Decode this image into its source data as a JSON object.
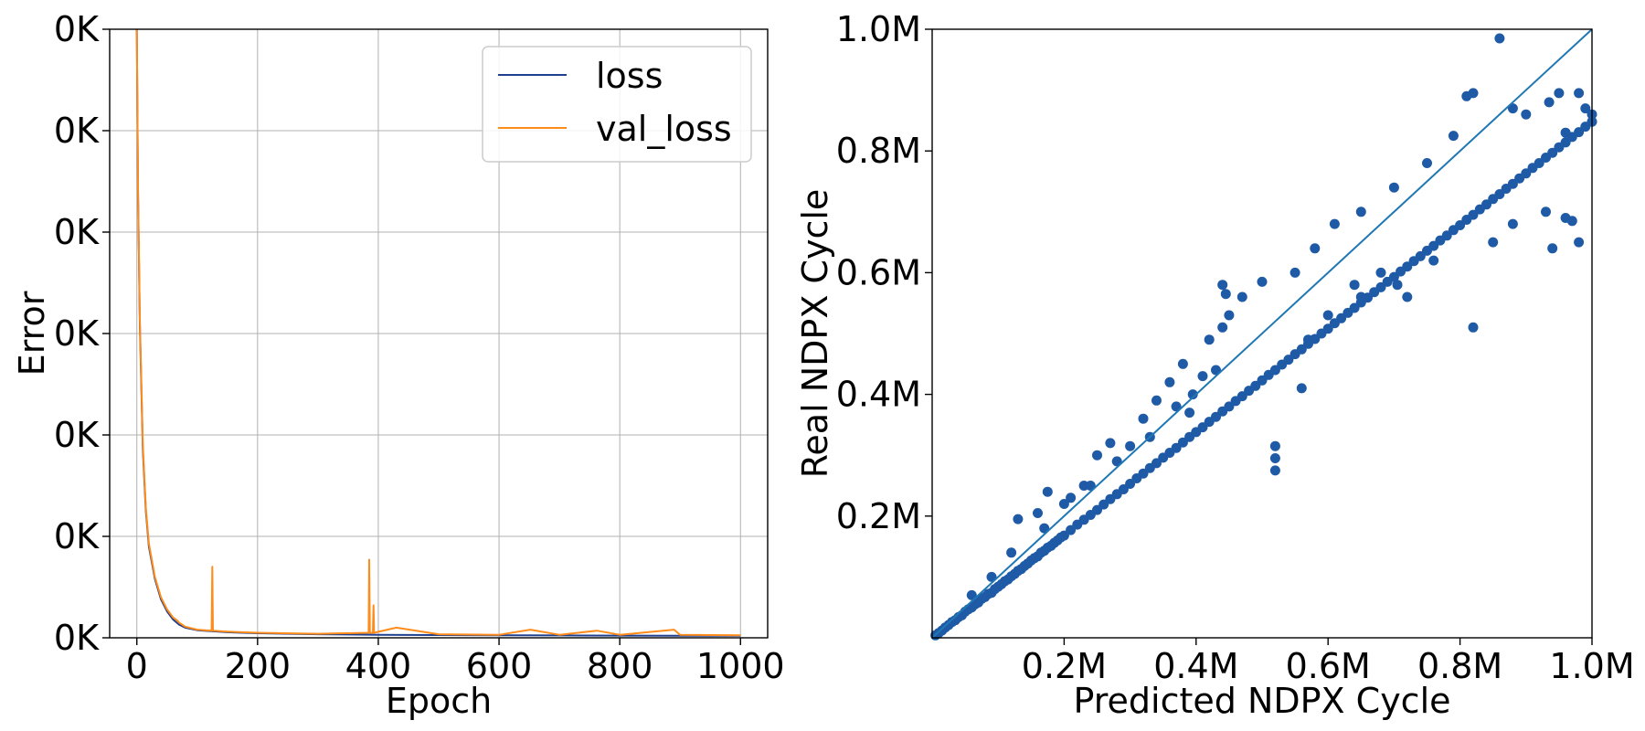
{
  "chart_data": [
    {
      "type": "line",
      "xlabel": "Epoch",
      "ylabel": "Error",
      "xlim": [
        -45,
        1045
      ],
      "ylim": [
        0,
        6
      ],
      "x_ticks": [
        0,
        200,
        400,
        600,
        800,
        1000
      ],
      "x_tick_labels": [
        "0",
        "200",
        "400",
        "600",
        "800",
        "1000"
      ],
      "y_ticks": [
        0,
        1,
        2,
        3,
        4,
        5,
        6
      ],
      "y_tick_labels": [
        "0K",
        "0K",
        "0K",
        "0K",
        "0K",
        "0K",
        "0K"
      ],
      "grid": true,
      "legend_position": "top-right",
      "series": [
        {
          "name": "loss",
          "color": "#1f3f8f",
          "shape": "exponential decay from 6.0 at epoch 0 to about 0.02 by epoch 1000",
          "x": [
            0,
            2,
            5,
            10,
            15,
            20,
            30,
            40,
            50,
            60,
            70,
            80,
            100,
            150,
            200,
            300,
            400,
            500,
            600,
            700,
            800,
            900,
            1000
          ],
          "y": [
            6.0,
            4.4,
            3.1,
            1.85,
            1.25,
            0.9,
            0.58,
            0.38,
            0.26,
            0.18,
            0.13,
            0.1,
            0.075,
            0.055,
            0.045,
            0.035,
            0.03,
            0.027,
            0.025,
            0.023,
            0.022,
            0.021,
            0.02
          ]
        },
        {
          "name": "val_loss",
          "color": "#ff8c1a",
          "shape": "follows loss with small noise; spikes near epochs 67, 125, 385, 392, 430, 652, 762, 890",
          "x": [
            0,
            2,
            5,
            10,
            15,
            20,
            30,
            40,
            50,
            60,
            67,
            70,
            80,
            100,
            124,
            125,
            126,
            150,
            200,
            300,
            384,
            385,
            386,
            391,
            392,
            393,
            430,
            500,
            600,
            652,
            700,
            762,
            800,
            890,
            900,
            1000
          ],
          "y": [
            6.0,
            4.45,
            3.15,
            1.9,
            1.28,
            0.93,
            0.6,
            0.4,
            0.28,
            0.2,
            0.17,
            0.15,
            0.11,
            0.08,
            0.07,
            0.7,
            0.07,
            0.06,
            0.05,
            0.04,
            0.05,
            0.77,
            0.05,
            0.05,
            0.32,
            0.05,
            0.1,
            0.035,
            0.03,
            0.08,
            0.03,
            0.07,
            0.03,
            0.08,
            0.03,
            0.025
          ]
        }
      ]
    },
    {
      "type": "scatter",
      "xlabel": "Predicted NDPX Cycle",
      "ylabel": "Real NDPX Cycle",
      "xlim": [
        0,
        1000000
      ],
      "ylim": [
        0,
        1000000
      ],
      "x_ticks": [
        200000,
        400000,
        600000,
        800000,
        1000000
      ],
      "x_tick_labels": [
        "0.2M",
        "0.4M",
        "0.6M",
        "0.8M",
        "1.0M"
      ],
      "y_ticks": [
        200000,
        400000,
        600000,
        800000,
        1000000
      ],
      "y_tick_labels": [
        "0.2M",
        "0.4M",
        "0.6M",
        "0.8M",
        "1.0M"
      ],
      "grid": false,
      "reference_line": {
        "x": [
          0,
          1000000
        ],
        "y": [
          0,
          1000000
        ],
        "color": "#1f77b4"
      },
      "point_color": "#1f5aa6",
      "points": [
        [
          5000,
          4000
        ],
        [
          10000,
          8000
        ],
        [
          15000,
          12000
        ],
        [
          20000,
          17000
        ],
        [
          25000,
          21000
        ],
        [
          30000,
          26000
        ],
        [
          35000,
          29000
        ],
        [
          40000,
          34000
        ],
        [
          45000,
          37000
        ],
        [
          50000,
          43000
        ],
        [
          55000,
          47000
        ],
        [
          60000,
          50000
        ],
        [
          65000,
          55000
        ],
        [
          70000,
          58000
        ],
        [
          75000,
          64000
        ],
        [
          80000,
          67000
        ],
        [
          85000,
          72000
        ],
        [
          90000,
          74000
        ],
        [
          95000,
          80000
        ],
        [
          100000,
          84000
        ],
        [
          105000,
          88000
        ],
        [
          110000,
          93000
        ],
        [
          115000,
          96000
        ],
        [
          120000,
          101000
        ],
        [
          125000,
          105000
        ],
        [
          130000,
          110000
        ],
        [
          135000,
          113000
        ],
        [
          140000,
          118000
        ],
        [
          145000,
          122000
        ],
        [
          150000,
          127000
        ],
        [
          155000,
          131000
        ],
        [
          160000,
          134000
        ],
        [
          165000,
          140000
        ],
        [
          170000,
          143000
        ],
        [
          175000,
          148000
        ],
        [
          180000,
          151000
        ],
        [
          185000,
          156000
        ],
        [
          190000,
          160000
        ],
        [
          195000,
          165000
        ],
        [
          200000,
          168000
        ],
        [
          210000,
          177000
        ],
        [
          220000,
          186000
        ],
        [
          230000,
          194000
        ],
        [
          240000,
          202000
        ],
        [
          250000,
          210000
        ],
        [
          260000,
          219000
        ],
        [
          270000,
          228000
        ],
        [
          280000,
          236000
        ],
        [
          290000,
          244000
        ],
        [
          300000,
          253000
        ],
        [
          310000,
          262000
        ],
        [
          320000,
          270000
        ],
        [
          330000,
          279000
        ],
        [
          340000,
          287000
        ],
        [
          350000,
          296000
        ],
        [
          360000,
          304000
        ],
        [
          370000,
          312000
        ],
        [
          380000,
          321000
        ],
        [
          390000,
          330000
        ],
        [
          400000,
          338000
        ],
        [
          410000,
          346000
        ],
        [
          420000,
          355000
        ],
        [
          430000,
          363000
        ],
        [
          440000,
          372000
        ],
        [
          450000,
          380000
        ],
        [
          460000,
          389000
        ],
        [
          470000,
          397000
        ],
        [
          480000,
          406000
        ],
        [
          490000,
          414000
        ],
        [
          500000,
          423000
        ],
        [
          510000,
          432000
        ],
        [
          520000,
          440000
        ],
        [
          530000,
          449000
        ],
        [
          540000,
          457000
        ],
        [
          550000,
          466000
        ],
        [
          560000,
          474000
        ],
        [
          570000,
          483000
        ],
        [
          580000,
          491000
        ],
        [
          590000,
          500000
        ],
        [
          600000,
          508000
        ],
        [
          610000,
          517000
        ],
        [
          620000,
          525000
        ],
        [
          630000,
          534000
        ],
        [
          640000,
          542000
        ],
        [
          650000,
          551000
        ],
        [
          660000,
          559000
        ],
        [
          670000,
          568000
        ],
        [
          680000,
          576000
        ],
        [
          690000,
          585000
        ],
        [
          700000,
          593000
        ],
        [
          710000,
          602000
        ],
        [
          720000,
          610000
        ],
        [
          730000,
          619000
        ],
        [
          740000,
          627000
        ],
        [
          750000,
          636000
        ],
        [
          760000,
          644000
        ],
        [
          770000,
          653000
        ],
        [
          780000,
          661000
        ],
        [
          790000,
          670000
        ],
        [
          800000,
          678000
        ],
        [
          810000,
          687000
        ],
        [
          820000,
          695000
        ],
        [
          830000,
          704000
        ],
        [
          840000,
          712000
        ],
        [
          850000,
          721000
        ],
        [
          860000,
          729000
        ],
        [
          870000,
          738000
        ],
        [
          880000,
          746000
        ],
        [
          890000,
          755000
        ],
        [
          900000,
          763000
        ],
        [
          910000,
          772000
        ],
        [
          920000,
          780000
        ],
        [
          930000,
          789000
        ],
        [
          940000,
          797000
        ],
        [
          950000,
          806000
        ],
        [
          960000,
          814000
        ],
        [
          970000,
          823000
        ],
        [
          980000,
          831000
        ],
        [
          990000,
          840000
        ],
        [
          1000000,
          848000
        ],
        [
          60000,
          70000
        ],
        [
          90000,
          100000
        ],
        [
          120000,
          140000
        ],
        [
          130000,
          195000
        ],
        [
          160000,
          205000
        ],
        [
          175000,
          240000
        ],
        [
          200000,
          220000
        ],
        [
          230000,
          250000
        ],
        [
          250000,
          300000
        ],
        [
          270000,
          320000
        ],
        [
          300000,
          315000
        ],
        [
          320000,
          360000
        ],
        [
          340000,
          390000
        ],
        [
          360000,
          420000
        ],
        [
          380000,
          450000
        ],
        [
          420000,
          490000
        ],
        [
          440000,
          510000
        ],
        [
          450000,
          530000
        ],
        [
          470000,
          560000
        ],
        [
          500000,
          585000
        ],
        [
          440000,
          580000
        ],
        [
          445000,
          565000
        ],
        [
          550000,
          600000
        ],
        [
          580000,
          640000
        ],
        [
          610000,
          680000
        ],
        [
          650000,
          700000
        ],
        [
          700000,
          740000
        ],
        [
          750000,
          780000
        ],
        [
          790000,
          825000
        ],
        [
          810000,
          890000
        ],
        [
          820000,
          895000
        ],
        [
          860000,
          985000
        ],
        [
          950000,
          895000
        ],
        [
          935000,
          880000
        ],
        [
          980000,
          895000
        ],
        [
          880000,
          870000
        ],
        [
          900000,
          860000
        ],
        [
          960000,
          830000
        ],
        [
          990000,
          870000
        ],
        [
          1000000,
          860000
        ],
        [
          520000,
          315000
        ],
        [
          520000,
          295000
        ],
        [
          520000,
          275000
        ],
        [
          560000,
          410000
        ],
        [
          650000,
          560000
        ],
        [
          705000,
          580000
        ],
        [
          720000,
          560000
        ],
        [
          820000,
          510000
        ],
        [
          940000,
          640000
        ],
        [
          980000,
          650000
        ],
        [
          960000,
          690000
        ],
        [
          970000,
          685000
        ],
        [
          930000,
          700000
        ],
        [
          880000,
          680000
        ],
        [
          850000,
          650000
        ],
        [
          760000,
          620000
        ],
        [
          680000,
          600000
        ],
        [
          640000,
          580000
        ],
        [
          600000,
          530000
        ],
        [
          570000,
          490000
        ],
        [
          430000,
          440000
        ],
        [
          410000,
          430000
        ],
        [
          395000,
          400000
        ],
        [
          390000,
          370000
        ],
        [
          370000,
          380000
        ],
        [
          330000,
          330000
        ],
        [
          280000,
          290000
        ],
        [
          240000,
          250000
        ],
        [
          210000,
          230000
        ],
        [
          170000,
          180000
        ]
      ]
    }
  ]
}
